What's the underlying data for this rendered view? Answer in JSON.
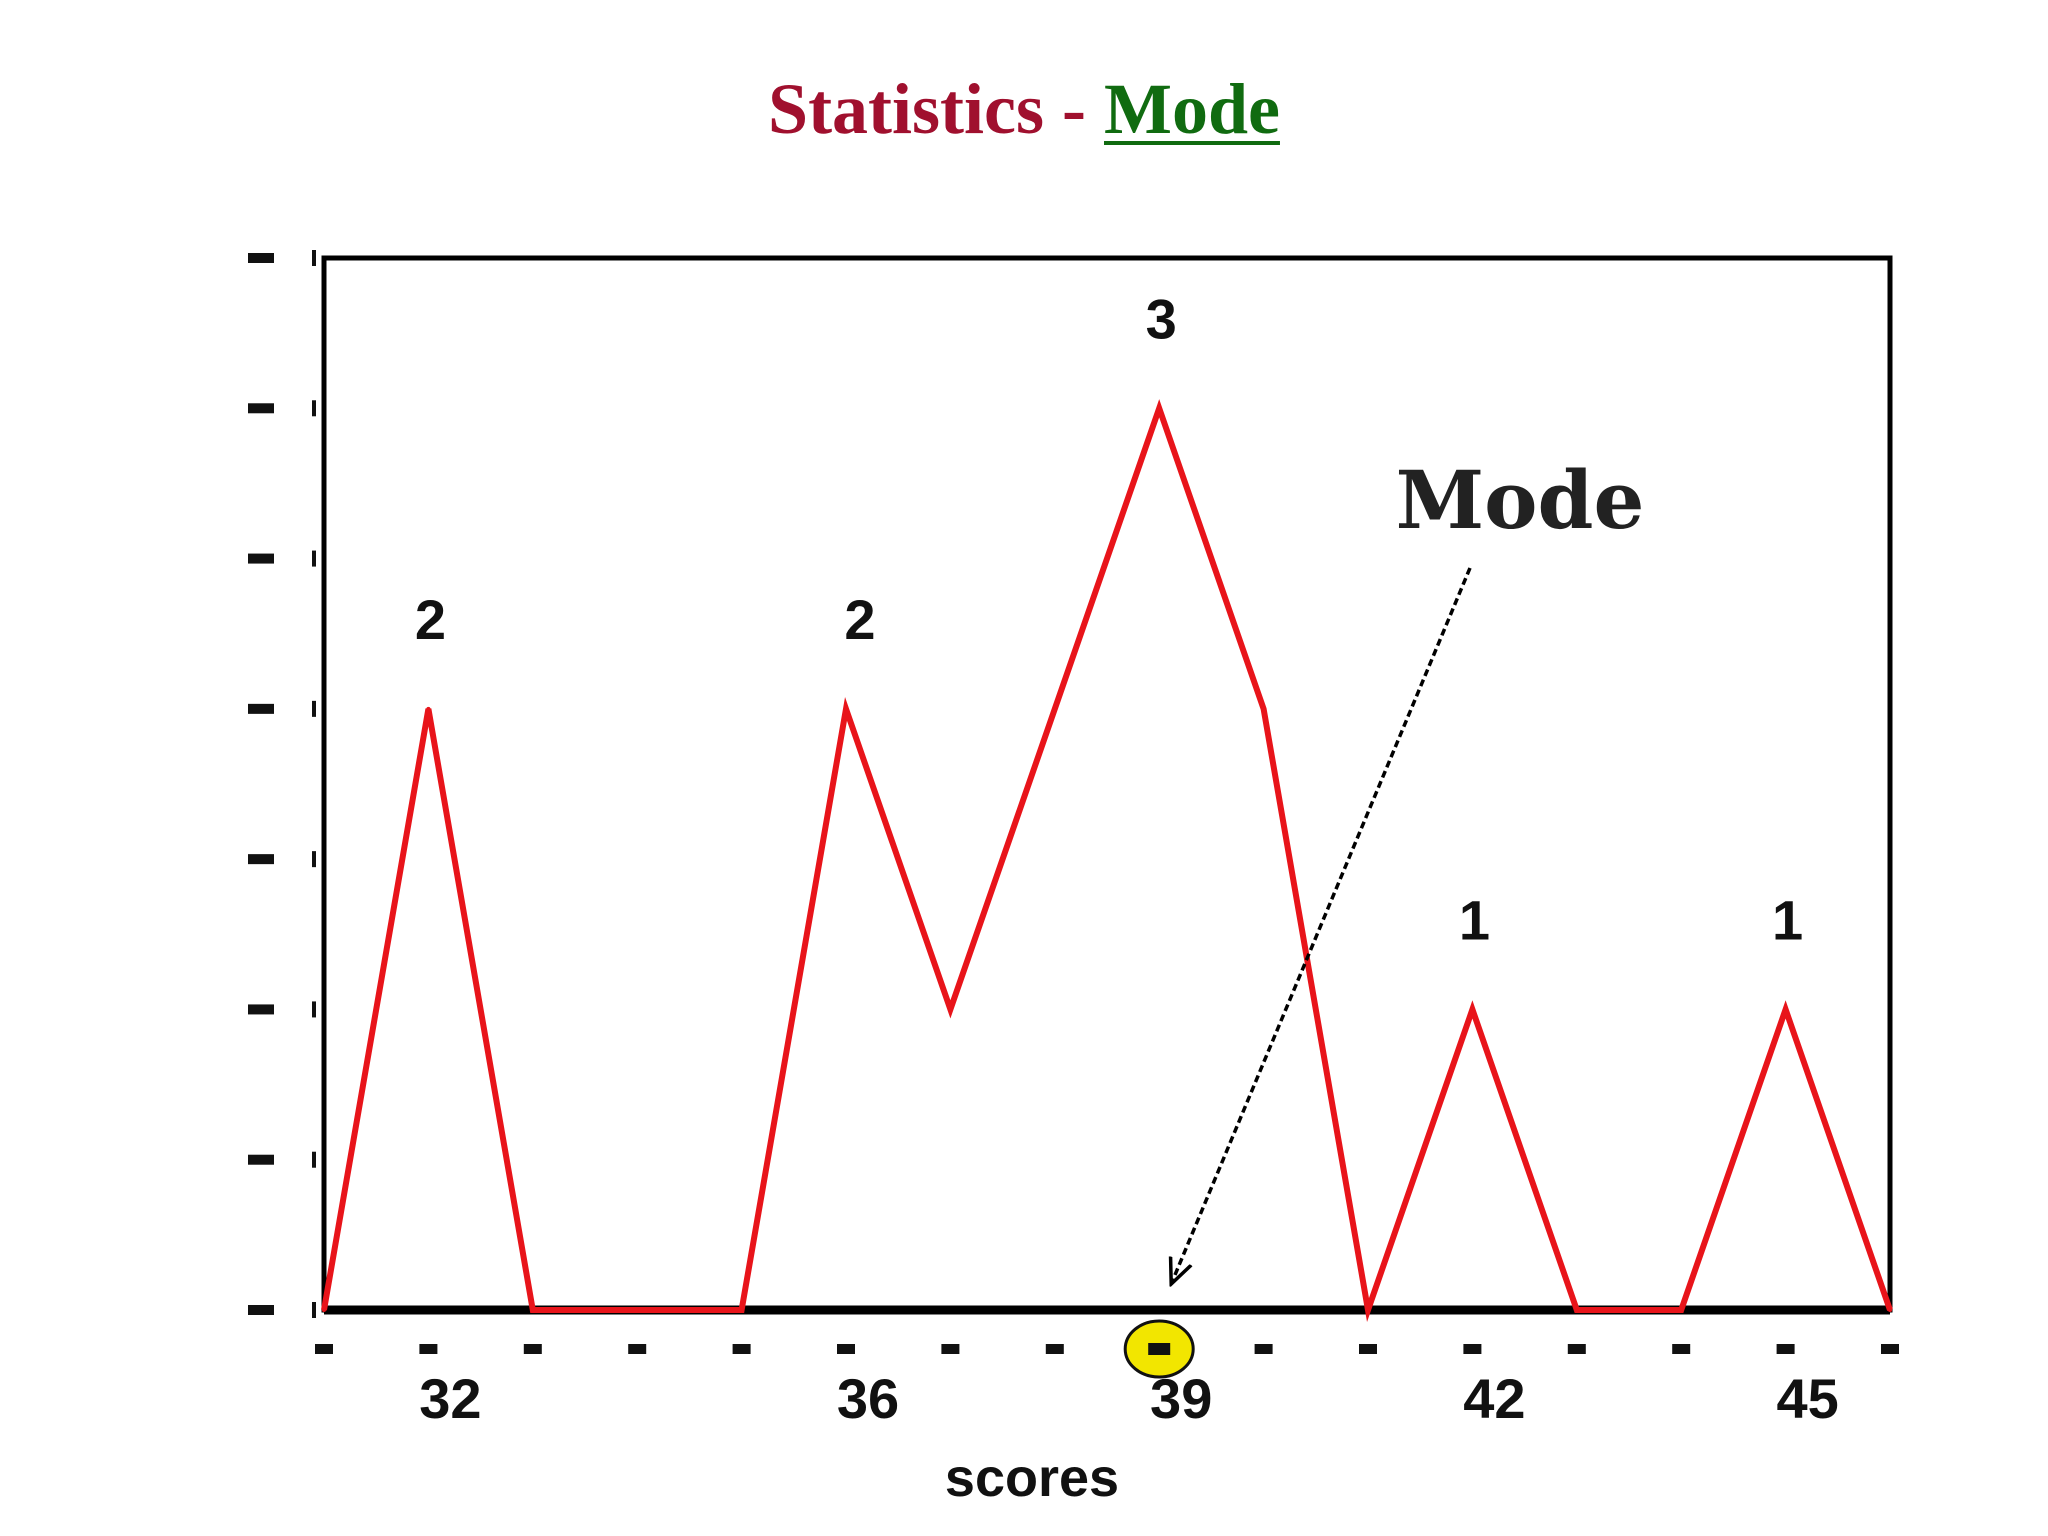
{
  "slide": {
    "title_main": "Statistics",
    "title_sep": "-",
    "title_accent": "Mode"
  },
  "chart_data": {
    "type": "line",
    "title": "Statistics - Mode",
    "xlabel": "scores",
    "ylabel": "",
    "xlim": [
      31,
      46
    ],
    "ylim": [
      0,
      3.5
    ],
    "grid": false,
    "series": [
      {
        "color": "#e8141a",
        "points": [
          [
            31,
            0
          ],
          [
            32,
            2
          ],
          [
            33,
            0
          ],
          [
            34,
            0
          ],
          [
            35,
            0
          ],
          [
            36,
            2
          ],
          [
            37,
            1
          ],
          [
            38,
            2
          ],
          [
            39,
            3
          ],
          [
            40,
            2
          ],
          [
            41,
            0
          ],
          [
            42,
            1
          ],
          [
            43,
            0
          ],
          [
            44,
            0
          ],
          [
            45,
            1
          ],
          [
            46,
            0
          ]
        ]
      }
    ],
    "peak_labels": [
      {
        "x": 32,
        "y": 2,
        "text": "2"
      },
      {
        "x": 36,
        "y": 2,
        "text": "2"
      },
      {
        "x": 39,
        "y": 3,
        "text": "3"
      },
      {
        "x": 42,
        "y": 1,
        "text": "1"
      },
      {
        "x": 45,
        "y": 1,
        "text": "1"
      }
    ],
    "score_labels": [
      {
        "x": 32,
        "text": "32"
      },
      {
        "x": 36,
        "text": "36"
      },
      {
        "x": 39,
        "text": "39"
      },
      {
        "x": 42,
        "text": "42"
      },
      {
        "x": 45,
        "text": "45"
      }
    ],
    "annotation": {
      "text": "Mode",
      "x": 39,
      "y": 0
    },
    "highlight": {
      "x": 39,
      "color": "#f2e600"
    },
    "axis_color": "#000000"
  }
}
